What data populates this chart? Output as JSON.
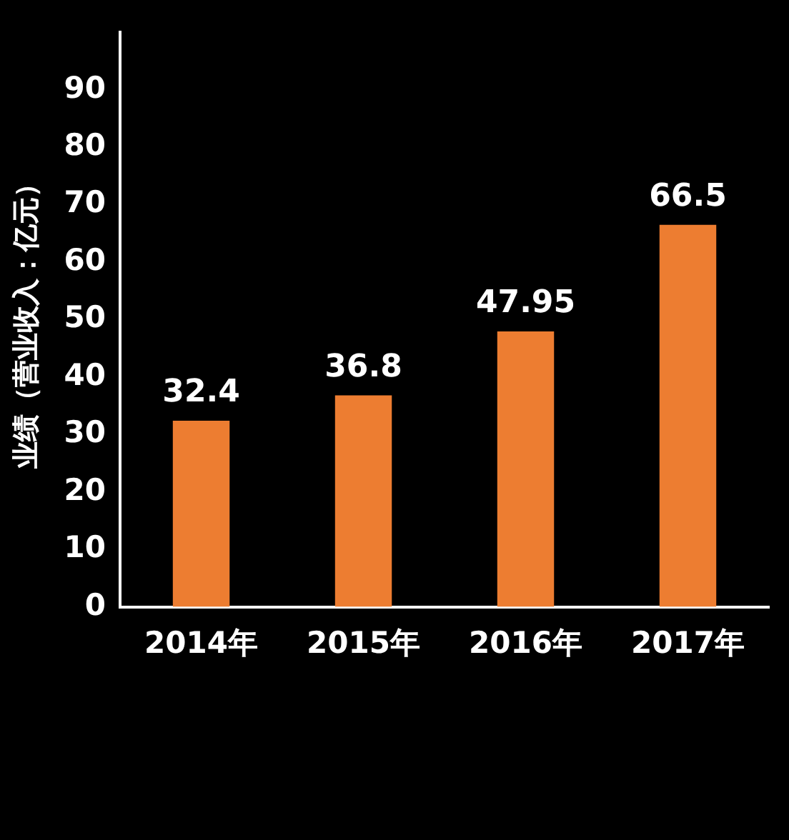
{
  "chart_data": {
    "type": "bar",
    "ylabel": "业绩（营业收入：亿元）",
    "categories": [
      "2014年",
      "2015年",
      "2016年",
      "2017年"
    ],
    "values": [
      32.4,
      36.8,
      47.95,
      66.5
    ],
    "color": "#ed7d31",
    "ylim": [
      0,
      100
    ],
    "yticks": [
      0,
      10,
      20,
      30,
      40,
      50,
      60,
      70,
      80,
      90
    ],
    "grid": false,
    "legend": false,
    "data_labels": true
  }
}
